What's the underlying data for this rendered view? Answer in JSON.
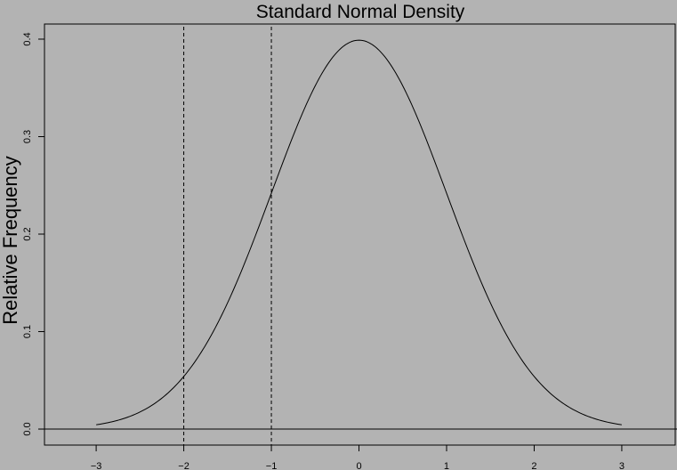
{
  "chart_data": {
    "type": "line",
    "title": "Standard Normal Density",
    "xlabel": "",
    "ylabel": "Relative Frequency",
    "xlim": [
      -3.59,
      3.61
    ],
    "ylim": [
      -0.0164,
      0.4155
    ],
    "x_ticks": [
      "-3",
      "-2",
      "-1",
      "0",
      "1",
      "2",
      "3"
    ],
    "y_ticks": [
      "0.0",
      "0.1",
      "0.2",
      "0.3",
      "0.4"
    ],
    "series": [
      {
        "function": "standard normal density",
        "x_range": [
          -3,
          3
        ]
      }
    ],
    "reference_lines": {
      "vertical_dashed": [
        -2,
        -1
      ],
      "horizontal_solid": [
        0
      ]
    },
    "grid": false,
    "background_color": "#b3b3b3",
    "line_color": "#000000"
  }
}
